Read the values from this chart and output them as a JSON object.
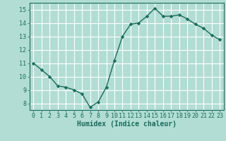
{
  "x": [
    0,
    1,
    2,
    3,
    4,
    5,
    6,
    7,
    8,
    9,
    10,
    11,
    12,
    13,
    14,
    15,
    16,
    17,
    18,
    19,
    20,
    21,
    22,
    23
  ],
  "y": [
    11.0,
    10.5,
    10.0,
    9.3,
    9.2,
    9.0,
    8.7,
    7.7,
    8.1,
    9.2,
    11.2,
    13.0,
    13.9,
    14.0,
    14.5,
    15.1,
    14.5,
    14.5,
    14.6,
    14.3,
    13.9,
    13.6,
    13.1,
    12.75
  ],
  "line_color": "#1a6b5a",
  "marker": "D",
  "marker_size": 2.2,
  "bg_color": "#b2ddd4",
  "grid_color": "#ffffff",
  "xlabel": "Humidex (Indice chaleur)",
  "xlabel_color": "#1a6b5a",
  "tick_color": "#1a6b5a",
  "axes_color": "#1a6b5a",
  "ylim": [
    7.5,
    15.5
  ],
  "xlim": [
    -0.5,
    23.5
  ],
  "yticks": [
    8,
    9,
    10,
    11,
    12,
    13,
    14,
    15
  ],
  "xticks": [
    0,
    1,
    2,
    3,
    4,
    5,
    6,
    7,
    8,
    9,
    10,
    11,
    12,
    13,
    14,
    15,
    16,
    17,
    18,
    19,
    20,
    21,
    22,
    23
  ],
  "font_size": 6.0,
  "label_font_size": 7.0,
  "line_width": 1.0
}
